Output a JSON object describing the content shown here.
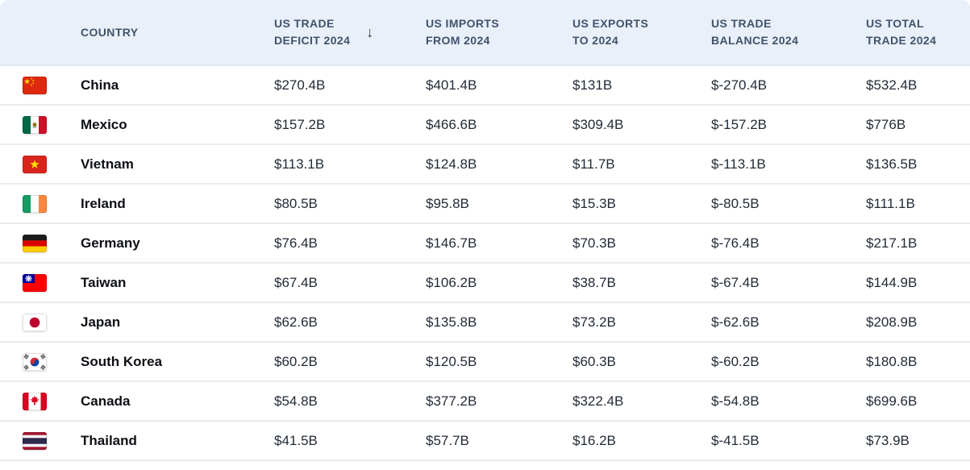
{
  "chart_data": {
    "type": "table",
    "columns": [
      {
        "id": "country",
        "label": "COUNTRY"
      },
      {
        "id": "deficit",
        "line1": "US TRADE",
        "line2": "DEFICIT 2024",
        "sorted": "descending"
      },
      {
        "id": "imports",
        "line1": "US IMPORTS",
        "line2": "FROM 2024"
      },
      {
        "id": "exports",
        "line1": "US EXPORTS",
        "line2": "TO 2024"
      },
      {
        "id": "balance",
        "line1": "US TRADE",
        "line2": "BALANCE 2024"
      },
      {
        "id": "total",
        "line1": "US TOTAL",
        "line2": "TRADE 2024"
      }
    ],
    "sort": {
      "column": "US TRADE DEFICIT 2024",
      "direction": "desc",
      "glyph": "↓"
    },
    "rows": [
      {
        "country": "China",
        "flag": "china",
        "values": {
          "deficit": "$270.4B",
          "imports": "$401.4B",
          "exports": "$131B",
          "balance": "$-270.4B",
          "total": "$532.4B"
        }
      },
      {
        "country": "Mexico",
        "flag": "mexico",
        "values": {
          "deficit": "$157.2B",
          "imports": "$466.6B",
          "exports": "$309.4B",
          "balance": "$-157.2B",
          "total": "$776B"
        }
      },
      {
        "country": "Vietnam",
        "flag": "vietnam",
        "values": {
          "deficit": "$113.1B",
          "imports": "$124.8B",
          "exports": "$11.7B",
          "balance": "$-113.1B",
          "total": "$136.5B"
        }
      },
      {
        "country": "Ireland",
        "flag": "ireland",
        "values": {
          "deficit": "$80.5B",
          "imports": "$95.8B",
          "exports": "$15.3B",
          "balance": "$-80.5B",
          "total": "$111.1B"
        }
      },
      {
        "country": "Germany",
        "flag": "germany",
        "values": {
          "deficit": "$76.4B",
          "imports": "$146.7B",
          "exports": "$70.3B",
          "balance": "$-76.4B",
          "total": "$217.1B"
        }
      },
      {
        "country": "Taiwan",
        "flag": "taiwan",
        "values": {
          "deficit": "$67.4B",
          "imports": "$106.2B",
          "exports": "$38.7B",
          "balance": "$-67.4B",
          "total": "$144.9B"
        }
      },
      {
        "country": "Japan",
        "flag": "japan",
        "values": {
          "deficit": "$62.6B",
          "imports": "$135.8B",
          "exports": "$73.2B",
          "balance": "$-62.6B",
          "total": "$208.9B"
        }
      },
      {
        "country": "South Korea",
        "flag": "south-korea",
        "values": {
          "deficit": "$60.2B",
          "imports": "$120.5B",
          "exports": "$60.3B",
          "balance": "$-60.2B",
          "total": "$180.8B"
        }
      },
      {
        "country": "Canada",
        "flag": "canada",
        "values": {
          "deficit": "$54.8B",
          "imports": "$377.2B",
          "exports": "$322.4B",
          "balance": "$-54.8B",
          "total": "$699.6B"
        }
      },
      {
        "country": "Thailand",
        "flag": "thailand",
        "values": {
          "deficit": "$41.5B",
          "imports": "$57.7B",
          "exports": "$16.2B",
          "balance": "$-41.5B",
          "total": "$73.9B"
        }
      }
    ]
  },
  "ui": {
    "colors": {
      "header_bg": "#e9f0fa",
      "row_divider": "#e9ebf0",
      "header_text": "#42526b",
      "body_text": "#222b36",
      "country_text": "#0c0f14"
    }
  }
}
